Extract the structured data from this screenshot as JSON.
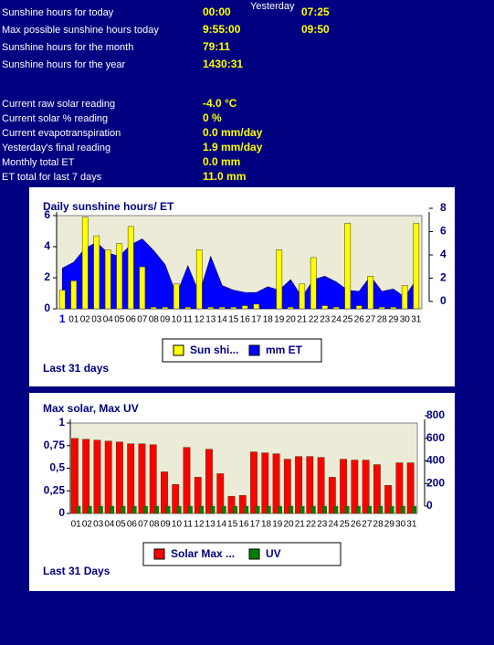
{
  "stats": {
    "yesterday_header": "Yesterday",
    "rows": [
      {
        "label": "Sunshine hours for today",
        "today": "00:00",
        "yesterday": "07:25"
      },
      {
        "label": "Max possible sunshine hours today",
        "today": "9:55:00",
        "yesterday": "09:50"
      },
      {
        "label": "Sunshine hours for the month",
        "today": "79:11"
      },
      {
        "label": "Sunshine hours for the year",
        "today": "1430:31"
      },
      {
        "label": "Current raw solar reading",
        "today": "-4.0 °C"
      },
      {
        "label": "Current solar % reading",
        "today": "0 %"
      },
      {
        "label": "Current evapotranspiration",
        "today": "0.0 mm/day"
      },
      {
        "label": "Yesterday's final reading",
        "today": "1.9 mm/day"
      },
      {
        "label": "Monthly total ET",
        "today": "0.0 mm"
      },
      {
        "label": "ET total for last 7 days",
        "today": "11.0 mm"
      }
    ]
  },
  "chart_data": [
    {
      "type": "bar",
      "title": "Daily sunshine hours/ ET",
      "footer": "Last 31 days",
      "categories": [
        "1",
        "01",
        "02",
        "03",
        "04",
        "05",
        "06",
        "07",
        "08",
        "09",
        "10",
        "11",
        "12",
        "13",
        "14",
        "15",
        "16",
        "17",
        "18",
        "19",
        "20",
        "21",
        "22",
        "23",
        "24",
        "25",
        "26",
        "27",
        "28",
        "29",
        "30",
        "31"
      ],
      "series": [
        {
          "name": "Sun shi...",
          "color": "#ffff00",
          "type": "bar",
          "values": [
            1.2,
            1.8,
            5.9,
            4.7,
            3.8,
            4.2,
            5.3,
            2.7,
            0.1,
            0.1,
            1.6,
            0.1,
            3.8,
            0.1,
            0.1,
            0.1,
            0.2,
            0.3,
            null,
            3.8,
            0.1,
            1.6,
            3.3,
            0.2,
            0.1,
            5.5,
            0.2,
            2.1,
            0.1,
            0.1,
            1.5,
            5.5
          ]
        },
        {
          "name": "mm ET",
          "color": "#0000ff",
          "type": "area",
          "axis": "y2",
          "values": [
            3.5,
            4,
            5.2,
            5.7,
            4.8,
            4.5,
            5.5,
            6,
            5,
            3.8,
            1.2,
            3.7,
            1.3,
            4.5,
            2,
            1.6,
            1.4,
            1.4,
            1.9,
            1.6,
            2.5,
            1,
            2.5,
            2.8,
            2.3,
            1.6,
            1.5,
            2.8,
            1.5,
            1.7,
            1,
            2.5
          ]
        }
      ],
      "ylim": [
        0,
        6
      ],
      "yticks": [
        0,
        2,
        4,
        6
      ],
      "y2lim": [
        0,
        8
      ],
      "y2ticks": [
        0,
        2,
        4,
        6,
        8
      ]
    },
    {
      "type": "bar",
      "title": "Max solar, Max UV",
      "footer": "Last 31 Days",
      "categories": [
        "01",
        "02",
        "03",
        "04",
        "05",
        "06",
        "07",
        "08",
        "09",
        "10",
        "11",
        "12",
        "13",
        "14",
        "15",
        "16",
        "17",
        "18",
        "19",
        "20",
        "21",
        "22",
        "23",
        "24",
        "25",
        "26",
        "27",
        "28",
        "29",
        "30",
        "31"
      ],
      "series": [
        {
          "name": "Solar Max ...",
          "color": "#ff0000",
          "type": "bar",
          "axis": "y2",
          "values": [
            664,
            656,
            648,
            640,
            632,
            616,
            616,
            608,
            368,
            256,
            584,
            320,
            568,
            352,
            152,
            160,
            544,
            536,
            528,
            480,
            504,
            504,
            496,
            320,
            480,
            472,
            472,
            432,
            248,
            448,
            448
          ]
        },
        {
          "name": "UV",
          "color": "#008000",
          "type": "bar",
          "values": [
            0.08,
            0.08,
            0.08,
            0.08,
            0.08,
            0.08,
            0.08,
            0.08,
            0.08,
            0.08,
            0.08,
            0.08,
            0.08,
            0.08,
            0.08,
            0.08,
            0.08,
            0.08,
            0.08,
            0.08,
            0.08,
            0.08,
            0.08,
            0.08,
            0.08,
            0.08,
            0.08,
            0.08,
            0.08,
            0.08,
            0.08
          ]
        }
      ],
      "ylim": [
        0,
        1
      ],
      "yticks": [
        0,
        {
          "value": 0.25,
          "label": "0,25"
        },
        {
          "value": 0.5,
          "label": "0,5"
        },
        {
          "value": 0.75,
          "label": "0,75"
        },
        1
      ],
      "y2lim": [
        0,
        800
      ],
      "y2ticks": [
        0,
        200,
        400,
        600,
        800
      ]
    }
  ]
}
